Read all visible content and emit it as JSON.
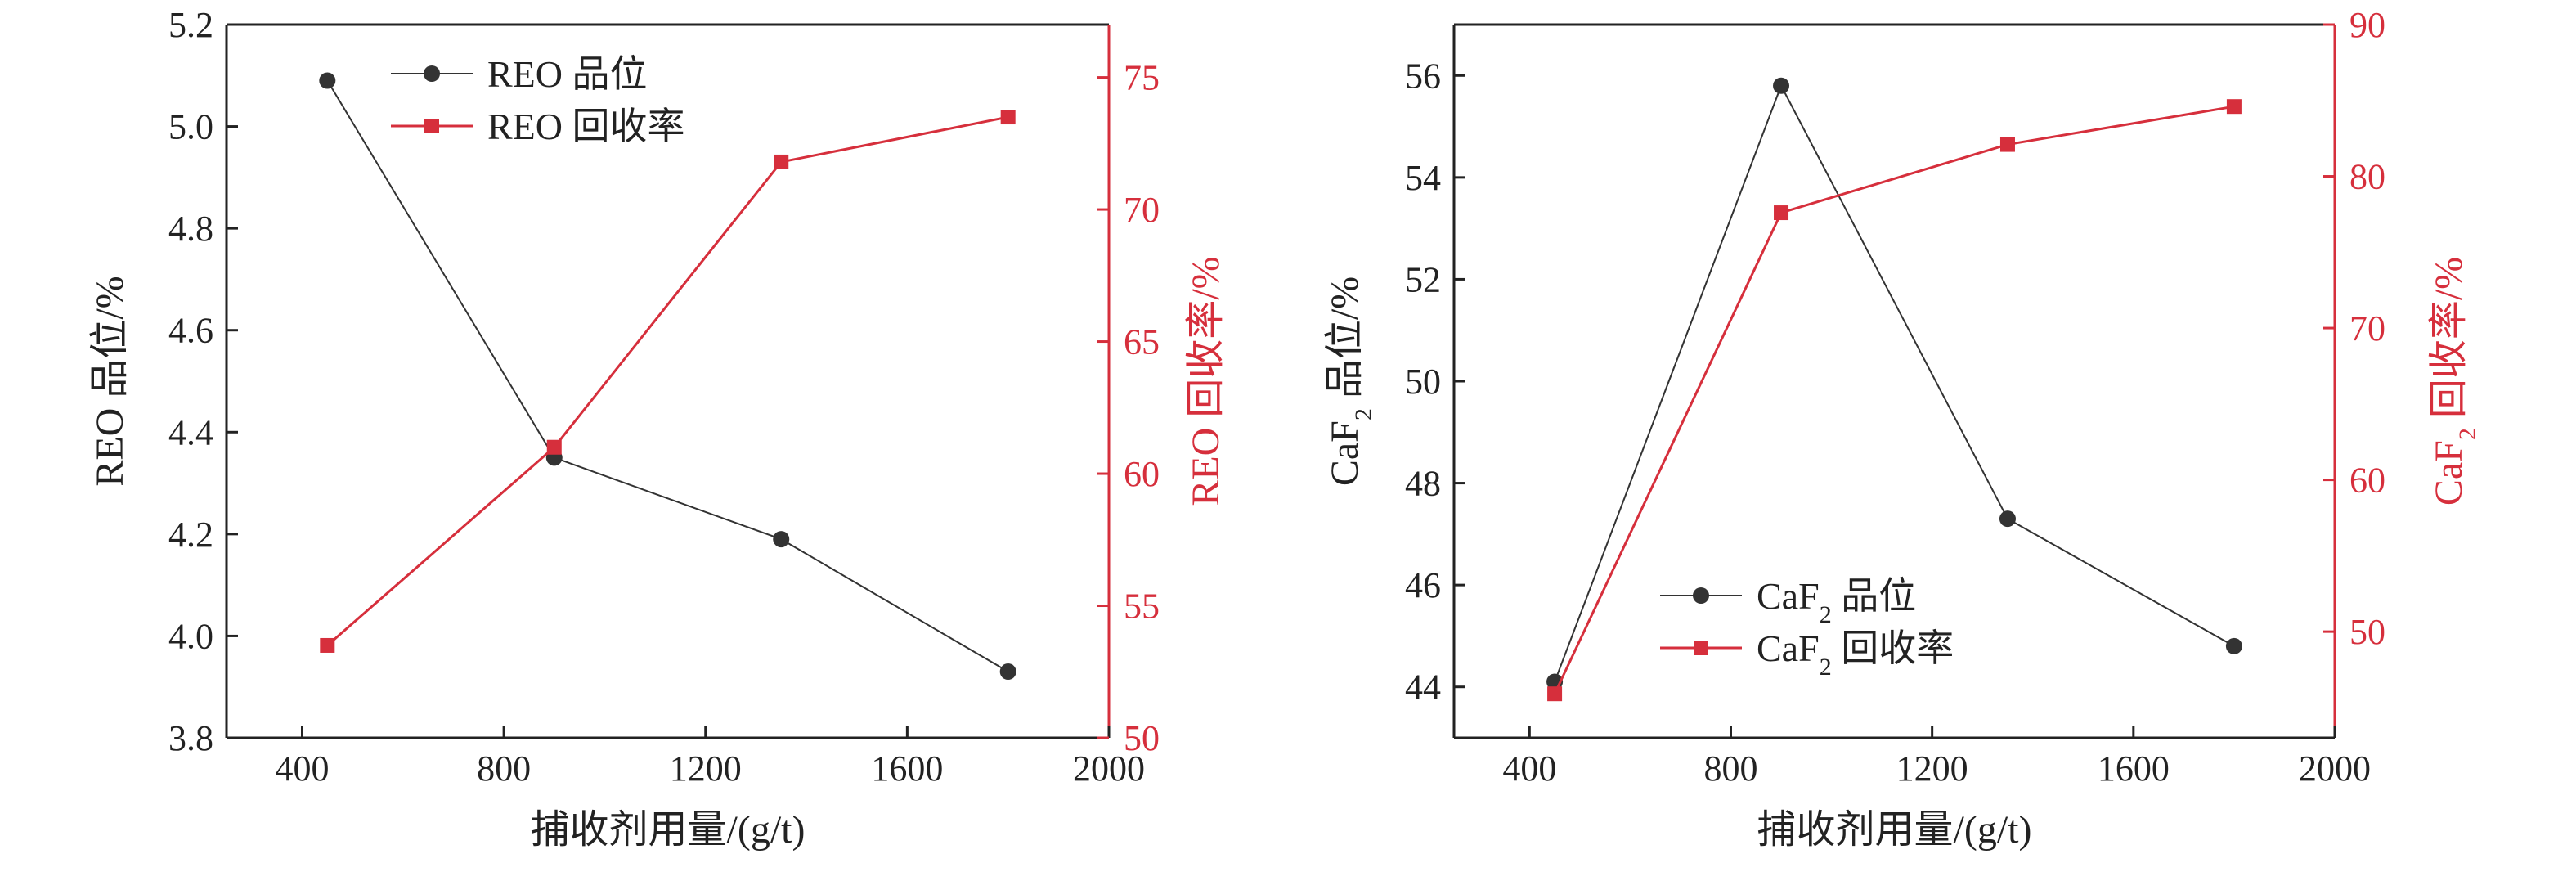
{
  "colors": {
    "grade": "#333333",
    "recovery": "#d62f3c",
    "axis": "#222222"
  },
  "chart_data": [
    {
      "type": "line",
      "x": [
        450,
        900,
        1350,
        1800
      ],
      "xlabel": "捕收剂用量/(g/t)",
      "xlim": [
        250,
        2000
      ],
      "xticks": [
        400,
        800,
        1200,
        1600,
        2000
      ],
      "ylabel_left": "REO 品位/%",
      "ylim_left": [
        3.8,
        5.2
      ],
      "yticks_left": [
        3.8,
        4.0,
        4.2,
        4.4,
        4.6,
        4.8,
        5.0,
        5.2
      ],
      "ytick_decimals_left": 1,
      "ylabel_right": "REO 回收率/%",
      "ylim_right": [
        50,
        77
      ],
      "yticks_right": [
        50,
        55,
        60,
        65,
        70,
        75
      ],
      "series": [
        {
          "name": "REO 品位",
          "axis": "left",
          "marker": "circle",
          "values": [
            5.09,
            4.35,
            4.19,
            3.93
          ]
        },
        {
          "name": "REO 回收率",
          "axis": "right",
          "marker": "square",
          "values": [
            53.5,
            61.0,
            71.8,
            73.5
          ]
        }
      ],
      "legend_position": "top-left",
      "grid": false
    },
    {
      "type": "line",
      "x": [
        450,
        900,
        1350,
        1800
      ],
      "xlabel": "捕收剂用量/(g/t)",
      "xlim": [
        250,
        2000
      ],
      "xticks": [
        400,
        800,
        1200,
        1600,
        2000
      ],
      "ylabel_left": "CaF2 品位/%",
      "ylim_left": [
        43,
        57
      ],
      "yticks_left": [
        44,
        46,
        48,
        50,
        52,
        54,
        56
      ],
      "ytick_decimals_left": 0,
      "ylabel_right": "CaF2 回收率/%",
      "ylim_right": [
        43,
        90
      ],
      "yticks_right": [
        50,
        60,
        70,
        80,
        90
      ],
      "series": [
        {
          "name": "CaF2 品位",
          "axis": "left",
          "marker": "circle",
          "values": [
            44.1,
            55.8,
            47.3,
            44.8
          ]
        },
        {
          "name": "CaF2 回收率",
          "axis": "right",
          "marker": "square",
          "values": [
            45.9,
            77.6,
            82.1,
            84.6
          ]
        }
      ],
      "legend_position": "bottom-left",
      "grid": false
    }
  ]
}
